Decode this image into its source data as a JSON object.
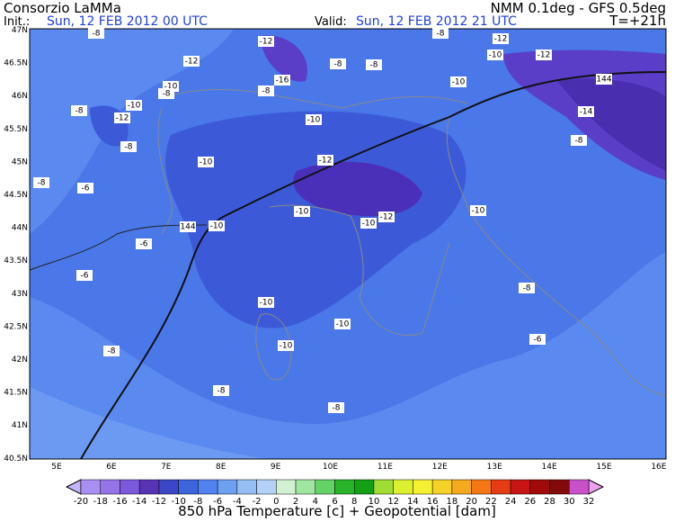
{
  "header": {
    "title": "Consorzio LaMMa",
    "model": "NMM 0.1deg - GFS 0.5deg",
    "init_label": "Init.:",
    "init": "Sun, 12 FEB 2012 00 UTC",
    "valid_label": "Valid:",
    "valid": "Sun, 12 FEB 2012 21 UTC",
    "step": "T=+21h"
  },
  "map": {
    "lat_labels": [
      "47N",
      "46.5N",
      "46N",
      "45.5N",
      "45N",
      "44.5N",
      "44N",
      "43.5N",
      "43N",
      "42.5N",
      "42N",
      "41.5N",
      "41N",
      "40.5N"
    ],
    "lon_labels": [
      "5E",
      "6E",
      "7E",
      "8E",
      "9E",
      "10E",
      "11E",
      "12E",
      "13E",
      "14E",
      "15E",
      "16E"
    ],
    "contour_labels": [
      "-8",
      "-12",
      "-8",
      "-12",
      "-10",
      "-12",
      "-12",
      "-8",
      "-8",
      "-16",
      "-10",
      "-8",
      "-8",
      "-10",
      "144",
      "-8",
      "-10",
      "-12",
      "-10",
      "-14",
      "-8",
      "-8",
      "-10",
      "-12",
      "-8",
      "-6",
      "-10",
      "-12",
      "-10",
      "-10",
      "144",
      "-10",
      "-6",
      "-6",
      "-8",
      "-10",
      "-10",
      "-6",
      "-10",
      "-8",
      "-8",
      "-8"
    ]
  },
  "colorbar": {
    "ticks": [
      -20,
      -18,
      -16,
      -14,
      -12,
      -10,
      -8,
      -6,
      -4,
      -2,
      0,
      2,
      4,
      6,
      8,
      10,
      12,
      14,
      16,
      18,
      20,
      22,
      24,
      26,
      28,
      30,
      32
    ],
    "caption": "850 hPa Temperature [c] + Geopotential [dam]"
  }
}
